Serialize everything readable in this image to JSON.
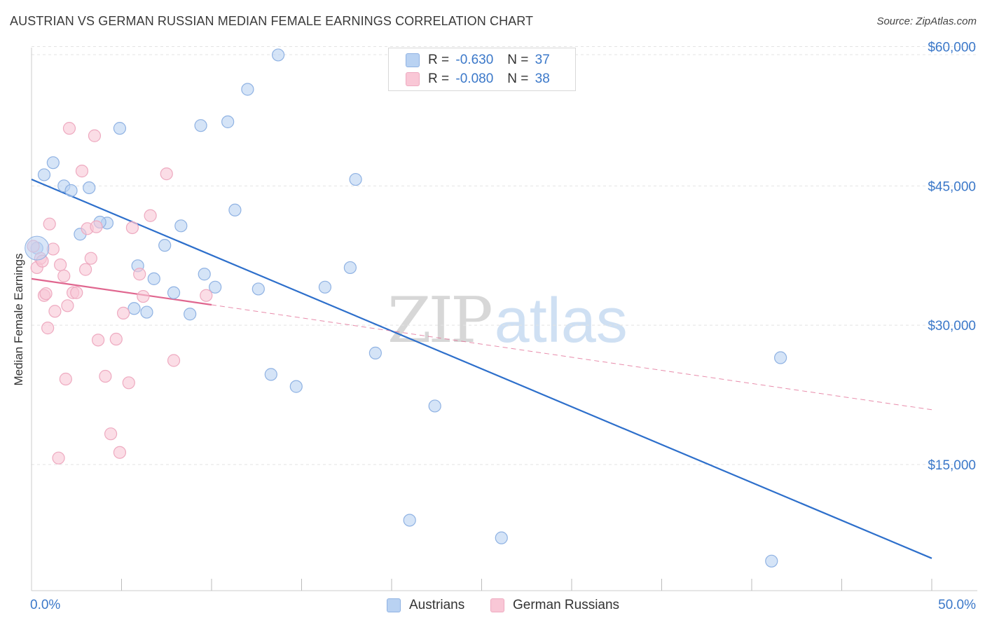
{
  "title": "AUSTRIAN VS GERMAN RUSSIAN MEDIAN FEMALE EARNINGS CORRELATION CHART",
  "source": "Source: ZipAtlas.com",
  "watermark": {
    "part1": "ZIP",
    "part2": "atlas"
  },
  "colors": {
    "blue_fill": "#b9d2f2",
    "blue_stroke": "#8fb2e3",
    "blue_line": "#2d6fcb",
    "pink_fill": "#f9c7d6",
    "pink_stroke": "#eeaac0",
    "pink_line": "#e0668f",
    "grid": "#e3e3e3",
    "axis_text": "#3b78c9"
  },
  "stats_legend": [
    {
      "r_label": "R =",
      "r_value": "-0.630",
      "n_label": "N =",
      "n_value": "37"
    },
    {
      "r_label": "R =",
      "r_value": "-0.080",
      "n_label": "N =",
      "n_value": "38"
    }
  ],
  "chart_data": {
    "type": "scatter",
    "title": "AUSTRIAN VS GERMAN RUSSIAN MEDIAN FEMALE EARNINGS CORRELATION CHART",
    "xlabel": "",
    "ylabel": "Median Female Earnings",
    "xlim": [
      0,
      50
    ],
    "ylim": [
      3000,
      62000
    ],
    "x_tick_labels": [
      "0.0%",
      "50.0%"
    ],
    "y_ticks": [
      15000,
      30000,
      45000,
      60000
    ],
    "y_tick_labels": [
      "$15,000",
      "$30,000",
      "$45,000",
      "$60,000"
    ],
    "grid": true,
    "series": [
      {
        "name": "Austrians",
        "color": "#b9d2f2",
        "points": [
          [
            0.3,
            38300
          ],
          [
            0.7,
            46200
          ],
          [
            1.2,
            47500
          ],
          [
            1.8,
            45000
          ],
          [
            2.2,
            44500
          ],
          [
            3.2,
            44800
          ],
          [
            2.7,
            39800
          ],
          [
            4.2,
            41000
          ],
          [
            3.8,
            41100
          ],
          [
            4.9,
            51200
          ],
          [
            5.7,
            31800
          ],
          [
            5.9,
            36400
          ],
          [
            6.4,
            31400
          ],
          [
            6.8,
            35000
          ],
          [
            7.4,
            38600
          ],
          [
            7.9,
            33500
          ],
          [
            8.3,
            40700
          ],
          [
            8.8,
            31200
          ],
          [
            9.4,
            51500
          ],
          [
            9.6,
            35500
          ],
          [
            10.2,
            34100
          ],
          [
            10.9,
            51900
          ],
          [
            11.3,
            42400
          ],
          [
            12.0,
            55400
          ],
          [
            12.6,
            33900
          ],
          [
            13.3,
            24700
          ],
          [
            13.7,
            59100
          ],
          [
            14.7,
            23400
          ],
          [
            16.3,
            34100
          ],
          [
            17.7,
            36200
          ],
          [
            18.0,
            45700
          ],
          [
            19.1,
            27000
          ],
          [
            21.0,
            9000
          ],
          [
            22.4,
            21300
          ],
          [
            26.1,
            7100
          ],
          [
            41.1,
            4600
          ],
          [
            41.6,
            26500
          ]
        ]
      },
      {
        "name": "German Russians",
        "color": "#f9c7d6",
        "points": [
          [
            0.1,
            38500
          ],
          [
            0.3,
            36200
          ],
          [
            0.5,
            37200
          ],
          [
            0.6,
            36900
          ],
          [
            0.7,
            33200
          ],
          [
            0.8,
            33400
          ],
          [
            0.9,
            29700
          ],
          [
            1.0,
            40900
          ],
          [
            1.2,
            38200
          ],
          [
            1.3,
            31500
          ],
          [
            1.5,
            15700
          ],
          [
            1.6,
            36500
          ],
          [
            1.8,
            35300
          ],
          [
            1.9,
            24200
          ],
          [
            2.0,
            32100
          ],
          [
            2.1,
            51200
          ],
          [
            2.3,
            33500
          ],
          [
            2.5,
            33500
          ],
          [
            2.8,
            46600
          ],
          [
            3.0,
            36000
          ],
          [
            3.1,
            40400
          ],
          [
            3.3,
            37200
          ],
          [
            3.5,
            50400
          ],
          [
            3.6,
            40600
          ],
          [
            3.7,
            28400
          ],
          [
            4.1,
            24500
          ],
          [
            4.4,
            18300
          ],
          [
            4.7,
            28500
          ],
          [
            4.9,
            16300
          ],
          [
            5.1,
            31300
          ],
          [
            5.4,
            23800
          ],
          [
            5.6,
            40500
          ],
          [
            6.0,
            35500
          ],
          [
            6.2,
            33100
          ],
          [
            6.6,
            41800
          ],
          [
            7.5,
            46300
          ],
          [
            7.9,
            26200
          ],
          [
            9.7,
            33200
          ]
        ]
      }
    ],
    "trendlines": [
      {
        "series": "Austrians",
        "x": [
          0,
          50
        ],
        "y": [
          45700,
          4900
        ],
        "style": "solid"
      },
      {
        "series": "German Russians",
        "x": [
          0,
          10
        ],
        "y": [
          35000,
          32200
        ],
        "style": "solid"
      },
      {
        "series": "German Russians",
        "x": [
          10,
          50
        ],
        "y": [
          32200,
          20900
        ],
        "style": "dashed"
      }
    ]
  }
}
